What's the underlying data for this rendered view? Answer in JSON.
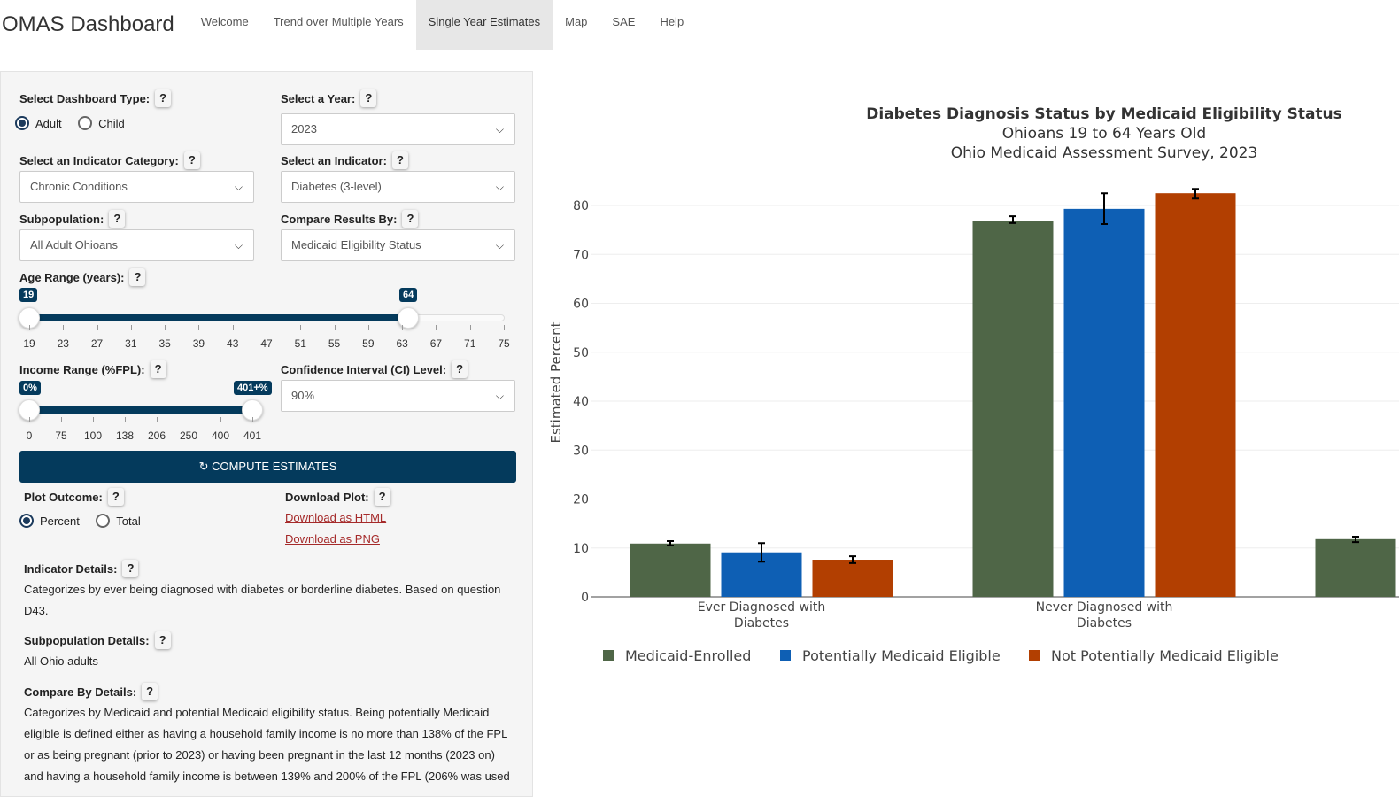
{
  "nav": {
    "brand": "OMAS Dashboard",
    "items": [
      "Welcome",
      "Trend over Multiple Years",
      "Single Year Estimates",
      "Map",
      "SAE",
      "Help"
    ],
    "active": "Single Year Estimates"
  },
  "panel": {
    "dashboard_type": {
      "label": "Select Dashboard Type:",
      "options": [
        "Adult",
        "Child"
      ],
      "selected": "Adult"
    },
    "year": {
      "label": "Select a Year:",
      "value": "2023"
    },
    "indicator_category": {
      "label": "Select an Indicator Category:",
      "value": "Chronic Conditions"
    },
    "indicator": {
      "label": "Select an Indicator:",
      "value": "Diabetes (3-level)"
    },
    "subpopulation": {
      "label": "Subpopulation:",
      "value": "All Adult Ohioans"
    },
    "compare_by": {
      "label": "Compare Results By:",
      "value": "Medicaid Eligibility Status"
    },
    "age": {
      "label": "Age Range (years):",
      "min_label": "19",
      "max_label": "64",
      "low": 19,
      "high": 64,
      "ticks": [
        "19",
        "23",
        "27",
        "31",
        "35",
        "39",
        "43",
        "47",
        "51",
        "55",
        "59",
        "63",
        "67",
        "71",
        "75"
      ]
    },
    "income": {
      "label": "Income Range (%FPL):",
      "min_label": "0%",
      "max_label": "401+%",
      "ticks": [
        "0",
        "75",
        "100",
        "138",
        "206",
        "250",
        "400",
        "401"
      ]
    },
    "ci": {
      "label": "Confidence Interval (CI) Level:",
      "value": "90%"
    },
    "compute": "COMPUTE ESTIMATES",
    "plot_outcome": {
      "label": "Plot Outcome:",
      "options": [
        "Percent",
        "Total"
      ],
      "selected": "Percent"
    },
    "download": {
      "label": "Download Plot:",
      "html": "Download as HTML",
      "png": "Download as PNG"
    },
    "indicator_details": {
      "label": "Indicator Details:",
      "text": "Categorizes by ever being diagnosed with diabetes or borderline diabetes. Based on question D43."
    },
    "subpop_details": {
      "label": "Subpopulation Details:",
      "text": "All Ohio adults"
    },
    "compare_details": {
      "label": "Compare By Details:",
      "text": "Categorizes by Medicaid and potential Medicaid eligibility status. Being potentially Medicaid eligible is defined either as having a household family income is no more than 138% of the FPL or as being pregnant (prior to 2023) or having been pregnant in the last 12 months (2023 on) and having a household family income is between 139% and 200% of the FPL (206% was used"
    },
    "help": "?"
  },
  "chart_data": {
    "type": "bar",
    "title": "Diabetes Diagnosis Status by Medicaid Eligibility Status",
    "subtitle": [
      "Ohioans 19 to 64 Years Old",
      "Ohio Medicaid Assessment Survey, 2023"
    ],
    "ylabel": "Estimated Percent",
    "ylim": [
      0,
      84
    ],
    "yticks": [
      0,
      10,
      20,
      30,
      40,
      50,
      60,
      70,
      80
    ],
    "grid": true,
    "legend": "bottom",
    "categories": [
      "Ever Diagnosed with Diabetes",
      "Never Diagnosed with Diabetes",
      ""
    ],
    "category_lines": [
      [
        "Ever Diagnosed with",
        "Diabetes"
      ],
      [
        "Never Diagnosed with",
        "Diabetes"
      ],
      []
    ],
    "series": [
      {
        "name": "Medicaid-Enrolled",
        "color": "#4f6647",
        "values": [
          10.9,
          76.9,
          11.8
        ],
        "ci_low": [
          10.5,
          76.4,
          11.2
        ],
        "ci_high": [
          11.4,
          77.8,
          12.3
        ]
      },
      {
        "name": "Potentially Medicaid Eligible",
        "color": "#0e5fb4",
        "values": [
          9.1,
          79.3,
          null
        ],
        "ci_low": [
          7.2,
          76.2,
          null
        ],
        "ci_high": [
          11.0,
          82.5,
          null
        ]
      },
      {
        "name": "Not Potentially Medicaid Eligible",
        "color": "#b23f01",
        "values": [
          7.6,
          82.5,
          null
        ],
        "ci_low": [
          6.9,
          81.4,
          null
        ],
        "ci_high": [
          8.3,
          83.4,
          null
        ]
      }
    ]
  }
}
